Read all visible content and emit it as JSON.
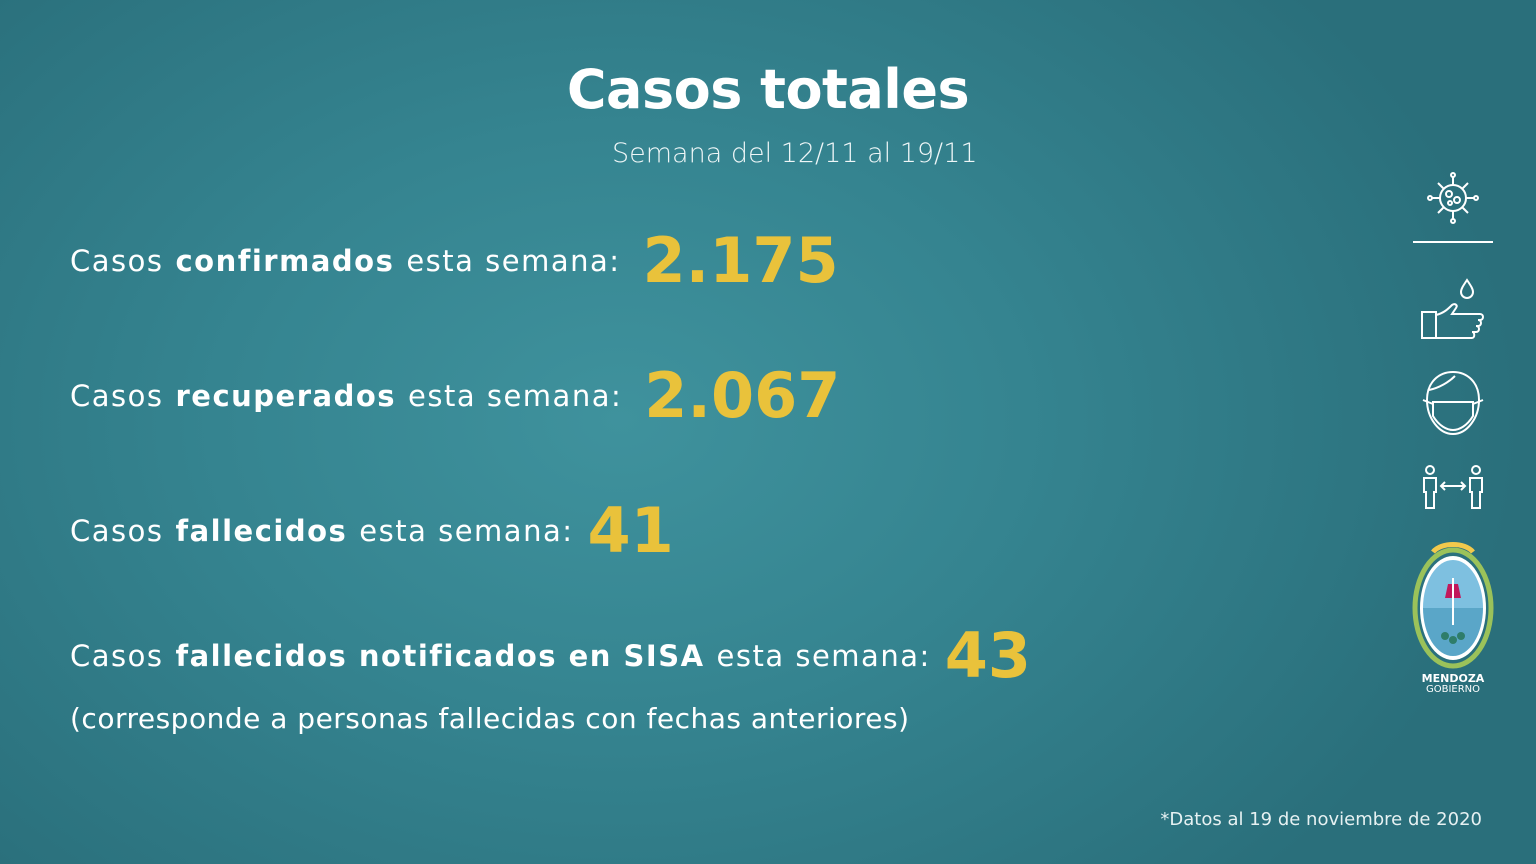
{
  "header": {
    "title": "Casos totales",
    "subtitle": "Semana del 12/11 al 19/11"
  },
  "rows": [
    {
      "prefix": "Casos",
      "bold": "confirmados",
      "suffix": "esta semana:",
      "value": "2.175"
    },
    {
      "prefix": "Casos",
      "bold": "recuperados",
      "suffix": "esta semana:",
      "value": "2.067"
    },
    {
      "prefix": "Casos",
      "bold": "fallecidos",
      "suffix": "esta semana:",
      "value": "41"
    },
    {
      "prefix": "Casos",
      "bold": "fallecidos notificados en SISA",
      "suffix": "esta semana:",
      "value": "43"
    }
  ],
  "note": "(corresponde a personas fallecidas con fechas anteriores)",
  "footnote": "*Datos al 19 de noviembre de 2020",
  "logo": {
    "line1": "MENDOZA",
    "line2": "GOBIERNO"
  }
}
